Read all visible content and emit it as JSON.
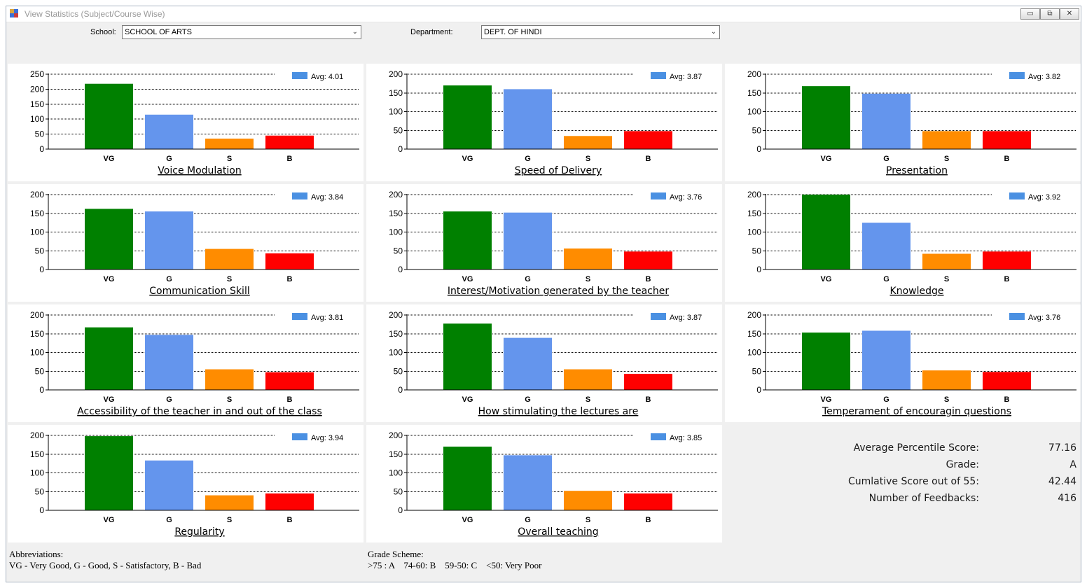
{
  "window": {
    "title": "View Statistics (Subject/Course Wise)",
    "controls": {
      "minimize": "▭",
      "restore": "⧉",
      "close": "✕"
    }
  },
  "filters": {
    "school_label": "School:",
    "school_value": "SCHOOL OF ARTS",
    "department_label": "Department:",
    "department_value": "DEPT. OF HINDI"
  },
  "colors": {
    "VG": "#008000",
    "G": "#6495ed",
    "S": "#ff8c00",
    "B": "#ff0000",
    "legend": "#4a90e2"
  },
  "chart_data": [
    {
      "type": "bar",
      "title": "Voice Modulation",
      "legend": "Avg: 4.01",
      "categories": [
        "VG",
        "G",
        "S",
        "B"
      ],
      "values": [
        218,
        115,
        35,
        45
      ],
      "ylim": [
        0,
        250
      ],
      "yticks": [
        0,
        50,
        100,
        150,
        200,
        250
      ]
    },
    {
      "type": "bar",
      "title": "Speed of Delivery",
      "legend": "Avg: 3.87",
      "categories": [
        "VG",
        "G",
        "S",
        "B"
      ],
      "values": [
        170,
        160,
        35,
        48
      ],
      "ylim": [
        0,
        200
      ],
      "yticks": [
        0,
        50,
        100,
        150,
        200
      ]
    },
    {
      "type": "bar",
      "title": "Presentation",
      "legend": "Avg: 3.82",
      "categories": [
        "VG",
        "G",
        "S",
        "B"
      ],
      "values": [
        168,
        148,
        48,
        48
      ],
      "ylim": [
        0,
        200
      ],
      "yticks": [
        0,
        50,
        100,
        150,
        200
      ]
    },
    {
      "type": "bar",
      "title": "Communication Skill",
      "legend": "Avg: 3.84",
      "categories": [
        "VG",
        "G",
        "S",
        "B"
      ],
      "values": [
        162,
        155,
        55,
        43
      ],
      "ylim": [
        0,
        200
      ],
      "yticks": [
        0,
        50,
        100,
        150,
        200
      ]
    },
    {
      "type": "bar",
      "title": "Interest/Motivation generated by the teacher",
      "legend": "Avg: 3.76",
      "categories": [
        "VG",
        "G",
        "S",
        "B"
      ],
      "values": [
        155,
        152,
        56,
        48
      ],
      "ylim": [
        0,
        200
      ],
      "yticks": [
        0,
        50,
        100,
        150,
        200
      ]
    },
    {
      "type": "bar",
      "title": "Knowledge",
      "legend": "Avg: 3.92",
      "categories": [
        "VG",
        "G",
        "S",
        "B"
      ],
      "values": [
        200,
        125,
        42,
        48
      ],
      "ylim": [
        0,
        200
      ],
      "yticks": [
        0,
        50,
        100,
        150,
        200
      ]
    },
    {
      "type": "bar",
      "title": "Accessibility of the teacher in and out of the class",
      "legend": "Avg: 3.81",
      "categories": [
        "VG",
        "G",
        "S",
        "B"
      ],
      "values": [
        167,
        147,
        55,
        47
      ],
      "ylim": [
        0,
        200
      ],
      "yticks": [
        0,
        50,
        100,
        150,
        200
      ]
    },
    {
      "type": "bar",
      "title": "How stimulating the lectures are",
      "legend": "Avg: 3.87",
      "categories": [
        "VG",
        "G",
        "S",
        "B"
      ],
      "values": [
        177,
        139,
        55,
        43
      ],
      "ylim": [
        0,
        200
      ],
      "yticks": [
        0,
        50,
        100,
        150,
        200
      ]
    },
    {
      "type": "bar",
      "title": "Temperament of encouragin questions",
      "legend": "Avg: 3.76",
      "categories": [
        "VG",
        "G",
        "S",
        "B"
      ],
      "values": [
        153,
        158,
        52,
        48
      ],
      "ylim": [
        0,
        200
      ],
      "yticks": [
        0,
        50,
        100,
        150,
        200
      ]
    },
    {
      "type": "bar",
      "title": "Regularity",
      "legend": "Avg: 3.94",
      "categories": [
        "VG",
        "G",
        "S",
        "B"
      ],
      "values": [
        198,
        133,
        40,
        45
      ],
      "ylim": [
        0,
        200
      ],
      "yticks": [
        0,
        50,
        100,
        150,
        200
      ]
    },
    {
      "type": "bar",
      "title": "Overall teaching",
      "legend": "Avg: 3.85",
      "categories": [
        "VG",
        "G",
        "S",
        "B"
      ],
      "values": [
        170,
        147,
        52,
        45
      ],
      "ylim": [
        0,
        200
      ],
      "yticks": [
        0,
        50,
        100,
        150,
        200
      ]
    }
  ],
  "summary": {
    "avg_percentile_label": "Average Percentile Score:",
    "avg_percentile_value": "77.16",
    "grade_label": "Grade:",
    "grade_value": "A",
    "cumulative_label": "Cumlative Score out of 55:",
    "cumulative_value": "42.44",
    "feedbacks_label": "Number of Feedbacks:",
    "feedbacks_value": "416"
  },
  "footer": {
    "abbrev_title": "Abbreviations:",
    "abbrev_text": "VG - Very Good, G - Good, S - Satisfactory, B - Bad",
    "grade_title": "Grade Scheme:",
    "grade_text": ">75 : A    74-60: B    59-50: C    <50: Very Poor"
  }
}
